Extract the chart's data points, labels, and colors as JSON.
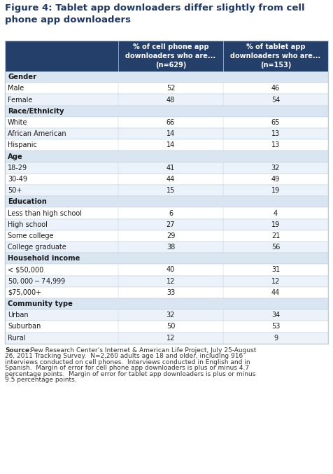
{
  "title": "Figure 4: Tablet app downloaders differ slightly from cell\nphone app downloaders",
  "col1_header": "% of cell phone app\ndownloaders who are...\n(n=629)",
  "col2_header": "% of tablet app\ndownloaders who are...\n(n=153)",
  "rows": [
    {
      "label": "Gender",
      "category": true,
      "val1": null,
      "val2": null
    },
    {
      "label": "Male",
      "category": false,
      "val1": "52",
      "val2": "46"
    },
    {
      "label": "Female",
      "category": false,
      "val1": "48",
      "val2": "54"
    },
    {
      "label": "Race/Ethnicity",
      "category": true,
      "val1": null,
      "val2": null
    },
    {
      "label": "White",
      "category": false,
      "val1": "66",
      "val2": "65"
    },
    {
      "label": "African American",
      "category": false,
      "val1": "14",
      "val2": "13"
    },
    {
      "label": "Hispanic",
      "category": false,
      "val1": "14",
      "val2": "13"
    },
    {
      "label": "Age",
      "category": true,
      "val1": null,
      "val2": null
    },
    {
      "label": "18-29",
      "category": false,
      "val1": "41",
      "val2": "32"
    },
    {
      "label": "30-49",
      "category": false,
      "val1": "44",
      "val2": "49"
    },
    {
      "label": "50+",
      "category": false,
      "val1": "15",
      "val2": "19"
    },
    {
      "label": "Education",
      "category": true,
      "val1": null,
      "val2": null
    },
    {
      "label": "Less than high school",
      "category": false,
      "val1": "6",
      "val2": "4"
    },
    {
      "label": "High school",
      "category": false,
      "val1": "27",
      "val2": "19"
    },
    {
      "label": "Some college",
      "category": false,
      "val1": "29",
      "val2": "21"
    },
    {
      "label": "College graduate",
      "category": false,
      "val1": "38",
      "val2": "56"
    },
    {
      "label": "Household income",
      "category": true,
      "val1": null,
      "val2": null
    },
    {
      "label": "< $50,000",
      "category": false,
      "val1": "40",
      "val2": "31"
    },
    {
      "label": "$50,000 - $74,999",
      "category": false,
      "val1": "12",
      "val2": "12"
    },
    {
      "label": "$75,000+",
      "category": false,
      "val1": "33",
      "val2": "44"
    },
    {
      "label": "Community type",
      "category": true,
      "val1": null,
      "val2": null
    },
    {
      "label": "Urban",
      "category": false,
      "val1": "32",
      "val2": "34"
    },
    {
      "label": "Suburban",
      "category": false,
      "val1": "50",
      "val2": "53"
    },
    {
      "label": "Rural",
      "category": false,
      "val1": "12",
      "val2": "9"
    }
  ],
  "footer_bold": "Source:",
  "footer_normal": "  Pew Research Center’s Internet & American Life Project, July 25-August 26, 2011 Tracking Survey.  N=2,260 adults age 18 and older, including 916 interviews conducted on cell phones.  Interviews conducted in English and in Spanish.  Margin of error for cell phone app downloaders is plus or minus 4.7 percentage points.  Margin of error for tablet app downloaders is plus or minus 9.5 percentage points.",
  "header_bg": "#253F6B",
  "header_text": "#FFFFFF",
  "category_bg": "#D9E6F2",
  "row_bg_white": "#FFFFFF",
  "row_bg_light": "#EBF2F9",
  "border_color": "#B8CDE0",
  "title_color": "#1F3864",
  "text_color": "#1a1a1a",
  "footer_color": "#333333"
}
